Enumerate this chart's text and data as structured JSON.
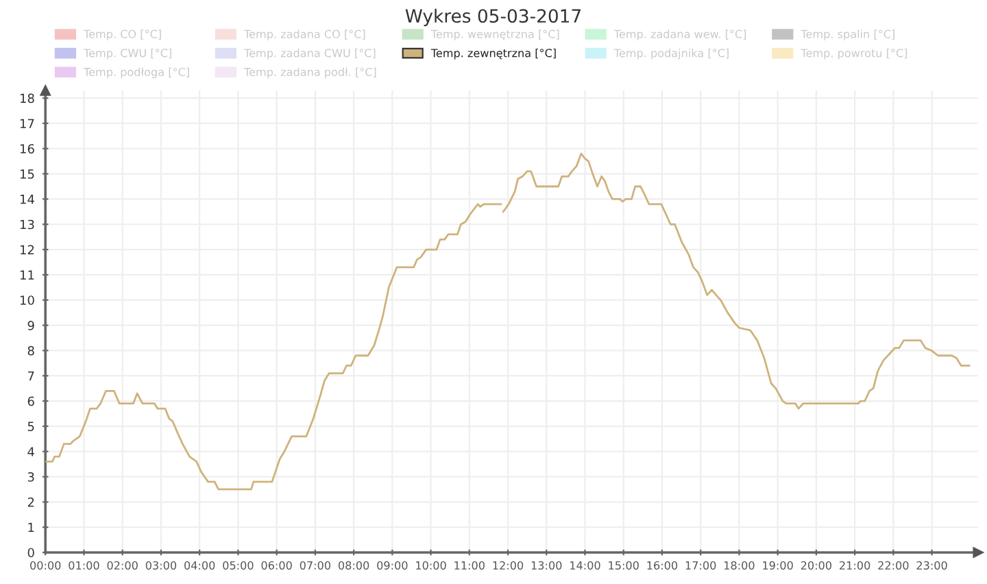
{
  "chart_data": {
    "type": "line",
    "title": "Wykres 05-03-2017",
    "x": [
      0.0,
      0.18,
      0.24,
      0.36,
      0.48,
      0.65,
      0.71,
      0.89,
      1.05,
      1.16,
      1.33,
      1.43,
      1.57,
      1.78,
      1.92,
      2.28,
      2.38,
      2.52,
      2.83,
      2.91,
      3.11,
      3.21,
      3.3,
      3.44,
      3.56,
      3.74,
      3.92,
      4.04,
      4.22,
      4.39,
      4.49,
      5.34,
      5.4,
      5.88,
      6.08,
      6.2,
      6.39,
      6.77,
      6.95,
      7.13,
      7.24,
      7.36,
      7.72,
      7.81,
      7.93,
      8.05,
      8.37,
      8.53,
      8.67,
      8.76,
      8.91,
      9.12,
      9.56,
      9.64,
      9.74,
      9.88,
      10.15,
      10.24,
      10.36,
      10.45,
      10.69,
      10.78,
      10.9,
      11.02,
      11.22,
      11.28,
      11.38,
      11.82,
      11.85,
      11.88,
      12.02,
      12.18,
      12.26,
      12.38,
      12.5,
      12.6,
      12.74,
      13.31,
      13.4,
      13.57,
      13.66,
      13.78,
      13.9,
      14.0,
      14.09,
      14.2,
      14.32,
      14.43,
      14.52,
      14.61,
      14.71,
      14.91,
      14.97,
      15.06,
      15.21,
      15.3,
      15.44,
      15.54,
      15.66,
      15.98,
      16.1,
      16.22,
      16.33,
      16.51,
      16.69,
      16.81,
      16.93,
      17.05,
      17.17,
      17.29,
      17.4,
      17.52,
      17.7,
      17.88,
      18.0,
      18.29,
      18.47,
      18.65,
      18.83,
      18.95,
      19.13,
      19.22,
      19.46,
      19.54,
      19.66,
      19.84,
      21.09,
      21.15,
      21.26,
      21.38,
      21.48,
      21.6,
      21.74,
      21.92,
      22.04,
      22.15,
      22.27,
      22.71,
      22.83,
      22.99,
      23.16,
      23.52,
      23.64,
      23.76,
      23.97
    ],
    "series": [
      {
        "name": "Temp. CO [°C]",
        "color": "#f5c2c2",
        "values": [
          null,
          null,
          null,
          null,
          null,
          null,
          null,
          null,
          null,
          null,
          null,
          null,
          null,
          null,
          null,
          null,
          null,
          null,
          null,
          null,
          null,
          null,
          null,
          null,
          null,
          null,
          null,
          null,
          null,
          null,
          null,
          null,
          null,
          null,
          null,
          null,
          null,
          null,
          null,
          null,
          null,
          null,
          null,
          null,
          null,
          null,
          null,
          null,
          null,
          null,
          null,
          null,
          null,
          null,
          null,
          null,
          null,
          null,
          null,
          null,
          null,
          null,
          null,
          null,
          null,
          null,
          null,
          null,
          null,
          null,
          null,
          null,
          null,
          null,
          null,
          null,
          null,
          null,
          null,
          null,
          null,
          null,
          null,
          null,
          null,
          null,
          null,
          null,
          null,
          null,
          null,
          null,
          null,
          null,
          null,
          null,
          null,
          null,
          null,
          null,
          null,
          null,
          null,
          null,
          null,
          null,
          null,
          null,
          null,
          null,
          null,
          null,
          null,
          null,
          null,
          null,
          null,
          null,
          null,
          null,
          null,
          null,
          null,
          null,
          null,
          null,
          null,
          null,
          null,
          null,
          null,
          null,
          null,
          null,
          null,
          null,
          null,
          null,
          null,
          null,
          null,
          null,
          null,
          null,
          null
        ]
      },
      {
        "name": "Temp. zadana CO [°C]",
        "color": "#f9dede",
        "values": [
          null,
          null,
          null,
          null,
          null,
          null,
          null,
          null,
          null,
          null,
          null,
          null,
          null,
          null,
          null,
          null,
          null,
          null,
          null,
          null,
          null,
          null,
          null,
          null,
          null,
          null,
          null,
          null,
          null,
          null,
          null,
          null,
          null,
          null,
          null,
          null,
          null,
          null,
          null,
          null,
          null,
          null,
          null,
          null,
          null,
          null,
          null,
          null,
          null,
          null,
          null,
          null,
          null,
          null,
          null,
          null,
          null,
          null,
          null,
          null,
          null,
          null,
          null,
          null,
          null,
          null,
          null,
          null,
          null,
          null,
          null,
          null,
          null,
          null,
          null,
          null,
          null,
          null,
          null,
          null,
          null,
          null,
          null,
          null,
          null,
          null,
          null,
          null,
          null,
          null,
          null,
          null,
          null,
          null,
          null,
          null,
          null,
          null,
          null,
          null,
          null,
          null,
          null,
          null,
          null,
          null,
          null,
          null,
          null,
          null,
          null,
          null,
          null,
          null,
          null,
          null,
          null,
          null,
          null,
          null,
          null,
          null,
          null,
          null,
          null,
          null,
          null,
          null,
          null,
          null,
          null,
          null,
          null,
          null,
          null,
          null,
          null,
          null,
          null,
          null,
          null,
          null,
          null,
          null,
          null
        ]
      },
      {
        "name": "Temp. wewnętrzna [°C]",
        "color": "#c6e4c6",
        "values": [
          null,
          null,
          null,
          null,
          null,
          null,
          null,
          null,
          null,
          null,
          null,
          null,
          null,
          null,
          null,
          null,
          null,
          null,
          null,
          null,
          null,
          null,
          null,
          null,
          null,
          null,
          null,
          null,
          null,
          null,
          null,
          null,
          null,
          null,
          null,
          null,
          null,
          null,
          null,
          null,
          null,
          null,
          null,
          null,
          null,
          null,
          null,
          null,
          null,
          null,
          null,
          null,
          null,
          null,
          null,
          null,
          null,
          null,
          null,
          null,
          null,
          null,
          null,
          null,
          null,
          null,
          null,
          null,
          null,
          null,
          null,
          null,
          null,
          null,
          null,
          null,
          null,
          null,
          null,
          null,
          null,
          null,
          null,
          null,
          null,
          null,
          null,
          null,
          null,
          null,
          null,
          null,
          null,
          null,
          null,
          null,
          null,
          null,
          null,
          null,
          null,
          null,
          null,
          null,
          null,
          null,
          null,
          null,
          null,
          null,
          null,
          null,
          null,
          null,
          null,
          null,
          null,
          null,
          null,
          null,
          null,
          null,
          null,
          null,
          null,
          null,
          null,
          null,
          null,
          null,
          null,
          null,
          null,
          null,
          null,
          null,
          null,
          null,
          null,
          null,
          null,
          null,
          null,
          null,
          null
        ]
      },
      {
        "name": "Temp. zadana wew. [°C]",
        "color": "#c9f5d9",
        "values": [
          null,
          null,
          null,
          null,
          null,
          null,
          null,
          null,
          null,
          null,
          null,
          null,
          null,
          null,
          null,
          null,
          null,
          null,
          null,
          null,
          null,
          null,
          null,
          null,
          null,
          null,
          null,
          null,
          null,
          null,
          null,
          null,
          null,
          null,
          null,
          null,
          null,
          null,
          null,
          null,
          null,
          null,
          null,
          null,
          null,
          null,
          null,
          null,
          null,
          null,
          null,
          null,
          null,
          null,
          null,
          null,
          null,
          null,
          null,
          null,
          null,
          null,
          null,
          null,
          null,
          null,
          null,
          null,
          null,
          null,
          null,
          null,
          null,
          null,
          null,
          null,
          null,
          null,
          null,
          null,
          null,
          null,
          null,
          null,
          null,
          null,
          null,
          null,
          null,
          null,
          null,
          null,
          null,
          null,
          null,
          null,
          null,
          null,
          null,
          null,
          null,
          null,
          null,
          null,
          null,
          null,
          null,
          null,
          null,
          null,
          null,
          null,
          null,
          null,
          null,
          null,
          null,
          null,
          null,
          null,
          null,
          null,
          null,
          null,
          null,
          null,
          null,
          null,
          null,
          null,
          null,
          null,
          null,
          null,
          null,
          null,
          null,
          null,
          null,
          null,
          null,
          null,
          null,
          null,
          null
        ]
      },
      {
        "name": "Temp. spalin [°C]",
        "color": "#c2c2c2",
        "values": [
          null,
          null,
          null,
          null,
          null,
          null,
          null,
          null,
          null,
          null,
          null,
          null,
          null,
          null,
          null,
          null,
          null,
          null,
          null,
          null,
          null,
          null,
          null,
          null,
          null,
          null,
          null,
          null,
          null,
          null,
          null,
          null,
          null,
          null,
          null,
          null,
          null,
          null,
          null,
          null,
          null,
          null,
          null,
          null,
          null,
          null,
          null,
          null,
          null,
          null,
          null,
          null,
          null,
          null,
          null,
          null,
          null,
          null,
          null,
          null,
          null,
          null,
          null,
          null,
          null,
          null,
          null,
          null,
          null,
          null,
          null,
          null,
          null,
          null,
          null,
          null,
          null,
          null,
          null,
          null,
          null,
          null,
          null,
          null,
          null,
          null,
          null,
          null,
          null,
          null,
          null,
          null,
          null,
          null,
          null,
          null,
          null,
          null,
          null,
          null,
          null,
          null,
          null,
          null,
          null,
          null,
          null,
          null,
          null,
          null,
          null,
          null,
          null,
          null,
          null,
          null,
          null,
          null,
          null,
          null,
          null,
          null,
          null,
          null,
          null,
          null,
          null,
          null,
          null,
          null,
          null,
          null,
          null,
          null,
          null,
          null,
          null,
          null,
          null,
          null,
          null,
          null,
          null,
          null,
          null
        ]
      },
      {
        "name": "Temp. CWU [°C]",
        "color": "#c2c2ee",
        "values": [
          null,
          null,
          null,
          null,
          null,
          null,
          null,
          null,
          null,
          null,
          null,
          null,
          null,
          null,
          null,
          null,
          null,
          null,
          null,
          null,
          null,
          null,
          null,
          null,
          null,
          null,
          null,
          null,
          null,
          null,
          null,
          null,
          null,
          null,
          null,
          null,
          null,
          null,
          null,
          null,
          null,
          null,
          null,
          null,
          null,
          null,
          null,
          null,
          null,
          null,
          null,
          null,
          null,
          null,
          null,
          null,
          null,
          null,
          null,
          null,
          null,
          null,
          null,
          null,
          null,
          null,
          null,
          null,
          null,
          null,
          null,
          null,
          null,
          null,
          null,
          null,
          null,
          null,
          null,
          null,
          null,
          null,
          null,
          null,
          null,
          null,
          null,
          null,
          null,
          null,
          null,
          null,
          null,
          null,
          null,
          null,
          null,
          null,
          null,
          null,
          null,
          null,
          null,
          null,
          null,
          null,
          null,
          null,
          null,
          null,
          null,
          null,
          null,
          null,
          null,
          null,
          null,
          null,
          null,
          null,
          null,
          null,
          null,
          null,
          null,
          null,
          null,
          null,
          null,
          null,
          null,
          null,
          null,
          null,
          null,
          null,
          null,
          null,
          null,
          null,
          null,
          null,
          null,
          null,
          null
        ]
      },
      {
        "name": "Temp. zadana CWU [°C]",
        "color": "#dedef6",
        "values": [
          null,
          null,
          null,
          null,
          null,
          null,
          null,
          null,
          null,
          null,
          null,
          null,
          null,
          null,
          null,
          null,
          null,
          null,
          null,
          null,
          null,
          null,
          null,
          null,
          null,
          null,
          null,
          null,
          null,
          null,
          null,
          null,
          null,
          null,
          null,
          null,
          null,
          null,
          null,
          null,
          null,
          null,
          null,
          null,
          null,
          null,
          null,
          null,
          null,
          null,
          null,
          null,
          null,
          null,
          null,
          null,
          null,
          null,
          null,
          null,
          null,
          null,
          null,
          null,
          null,
          null,
          null,
          null,
          null,
          null,
          null,
          null,
          null,
          null,
          null,
          null,
          null,
          null,
          null,
          null,
          null,
          null,
          null,
          null,
          null,
          null,
          null,
          null,
          null,
          null,
          null,
          null,
          null,
          null,
          null,
          null,
          null,
          null,
          null,
          null,
          null,
          null,
          null,
          null,
          null,
          null,
          null,
          null,
          null,
          null,
          null,
          null,
          null,
          null,
          null,
          null,
          null,
          null,
          null,
          null,
          null,
          null,
          null,
          null,
          null,
          null,
          null,
          null,
          null,
          null,
          null,
          null,
          null,
          null,
          null,
          null,
          null,
          null,
          null,
          null,
          null,
          null,
          null,
          null,
          null
        ]
      },
      {
        "name": "Temp. zewnętrzna [°C]",
        "color": "#cfb27c",
        "values": [
          3.6,
          3.6,
          3.8,
          3.8,
          4.3,
          4.3,
          4.4,
          4.6,
          5.2,
          5.7,
          5.7,
          5.9,
          6.4,
          6.4,
          5.9,
          5.9,
          6.3,
          5.9,
          5.9,
          5.7,
          5.7,
          5.3,
          5.2,
          4.7,
          4.3,
          3.8,
          3.6,
          3.2,
          2.8,
          2.8,
          2.5,
          2.5,
          2.8,
          2.8,
          3.7,
          4.0,
          4.6,
          4.6,
          5.3,
          6.2,
          6.8,
          7.1,
          7.1,
          7.4,
          7.4,
          7.8,
          7.8,
          8.2,
          8.9,
          9.4,
          10.5,
          11.3,
          11.3,
          11.6,
          11.7,
          12.0,
          12.0,
          12.4,
          12.4,
          12.6,
          12.6,
          13.0,
          13.1,
          13.4,
          13.8,
          13.7,
          13.8,
          13.8,
          null,
          13.5,
          13.8,
          14.3,
          14.8,
          14.9,
          15.1,
          15.1,
          14.5,
          14.5,
          14.9,
          14.9,
          15.1,
          15.3,
          15.8,
          15.6,
          15.5,
          15.0,
          14.5,
          14.9,
          14.7,
          14.3,
          14.0,
          14.0,
          13.9,
          14.0,
          14.0,
          14.5,
          14.5,
          14.2,
          13.8,
          13.8,
          13.4,
          13.0,
          13.0,
          12.3,
          11.8,
          11.3,
          11.1,
          10.7,
          10.2,
          10.4,
          10.2,
          10.0,
          9.5,
          9.1,
          8.9,
          8.8,
          8.4,
          7.7,
          6.7,
          6.5,
          6.0,
          5.9,
          5.9,
          5.7,
          5.9,
          5.9,
          5.9,
          6.0,
          6.0,
          6.4,
          6.5,
          7.2,
          7.6,
          7.9,
          8.1,
          8.1,
          8.4,
          8.4,
          8.1,
          8.0,
          7.8,
          7.8,
          7.7,
          7.4,
          7.4
        ]
      },
      {
        "name": "Temp. podajnika [°C]",
        "color": "#c9f3f8",
        "values": [
          null,
          null,
          null,
          null,
          null,
          null,
          null,
          null,
          null,
          null,
          null,
          null,
          null,
          null,
          null,
          null,
          null,
          null,
          null,
          null,
          null,
          null,
          null,
          null,
          null,
          null,
          null,
          null,
          null,
          null,
          null,
          null,
          null,
          null,
          null,
          null,
          null,
          null,
          null,
          null,
          null,
          null,
          null,
          null,
          null,
          null,
          null,
          null,
          null,
          null,
          null,
          null,
          null,
          null,
          null,
          null,
          null,
          null,
          null,
          null,
          null,
          null,
          null,
          null,
          null,
          null,
          null,
          null,
          null,
          null,
          null,
          null,
          null,
          null,
          null,
          null,
          null,
          null,
          null,
          null,
          null,
          null,
          null,
          null,
          null,
          null,
          null,
          null,
          null,
          null,
          null,
          null,
          null,
          null,
          null,
          null,
          null,
          null,
          null,
          null,
          null,
          null,
          null,
          null,
          null,
          null,
          null,
          null,
          null,
          null,
          null,
          null,
          null,
          null,
          null,
          null,
          null,
          null,
          null,
          null,
          null,
          null,
          null,
          null,
          null,
          null,
          null,
          null,
          null,
          null,
          null,
          null,
          null,
          null,
          null,
          null,
          null,
          null,
          null,
          null,
          null,
          null,
          null,
          null,
          null
        ]
      },
      {
        "name": "Temp. powrotu [°C]",
        "color": "#faeac2",
        "values": [
          null,
          null,
          null,
          null,
          null,
          null,
          null,
          null,
          null,
          null,
          null,
          null,
          null,
          null,
          null,
          null,
          null,
          null,
          null,
          null,
          null,
          null,
          null,
          null,
          null,
          null,
          null,
          null,
          null,
          null,
          null,
          null,
          null,
          null,
          null,
          null,
          null,
          null,
          null,
          null,
          null,
          null,
          null,
          null,
          null,
          null,
          null,
          null,
          null,
          null,
          null,
          null,
          null,
          null,
          null,
          null,
          null,
          null,
          null,
          null,
          null,
          null,
          null,
          null,
          null,
          null,
          null,
          null,
          null,
          null,
          null,
          null,
          null,
          null,
          null,
          null,
          null,
          null,
          null,
          null,
          null,
          null,
          null,
          null,
          null,
          null,
          null,
          null,
          null,
          null,
          null,
          null,
          null,
          null,
          null,
          null,
          null,
          null,
          null,
          null,
          null,
          null,
          null,
          null,
          null,
          null,
          null,
          null,
          null,
          null,
          null,
          null,
          null,
          null,
          null,
          null,
          null,
          null,
          null,
          null,
          null,
          null,
          null,
          null,
          null,
          null,
          null,
          null,
          null,
          null,
          null,
          null,
          null,
          null,
          null,
          null,
          null,
          null,
          null,
          null,
          null,
          null,
          null,
          null,
          null
        ]
      },
      {
        "name": "Temp. podłoga [°C]",
        "color": "#e9c9f1",
        "values": [
          null,
          null,
          null,
          null,
          null,
          null,
          null,
          null,
          null,
          null,
          null,
          null,
          null,
          null,
          null,
          null,
          null,
          null,
          null,
          null,
          null,
          null,
          null,
          null,
          null,
          null,
          null,
          null,
          null,
          null,
          null,
          null,
          null,
          null,
          null,
          null,
          null,
          null,
          null,
          null,
          null,
          null,
          null,
          null,
          null,
          null,
          null,
          null,
          null,
          null,
          null,
          null,
          null,
          null,
          null,
          null,
          null,
          null,
          null,
          null,
          null,
          null,
          null,
          null,
          null,
          null,
          null,
          null,
          null,
          null,
          null,
          null,
          null,
          null,
          null,
          null,
          null,
          null,
          null,
          null,
          null,
          null,
          null,
          null,
          null,
          null,
          null,
          null,
          null,
          null,
          null,
          null,
          null,
          null,
          null,
          null,
          null,
          null,
          null,
          null,
          null,
          null,
          null,
          null,
          null,
          null,
          null,
          null,
          null,
          null,
          null,
          null,
          null,
          null,
          null,
          null,
          null,
          null,
          null,
          null,
          null,
          null,
          null,
          null,
          null,
          null,
          null,
          null,
          null,
          null,
          null,
          null,
          null,
          null,
          null,
          null,
          null,
          null,
          null,
          null,
          null,
          null,
          null,
          null,
          null
        ]
      },
      {
        "name": "Temp. zadana podł. [°C]",
        "color": "#f3e6f5",
        "values": [
          null,
          null,
          null,
          null,
          null,
          null,
          null,
          null,
          null,
          null,
          null,
          null,
          null,
          null,
          null,
          null,
          null,
          null,
          null,
          null,
          null,
          null,
          null,
          null,
          null,
          null,
          null,
          null,
          null,
          null,
          null,
          null,
          null,
          null,
          null,
          null,
          null,
          null,
          null,
          null,
          null,
          null,
          null,
          null,
          null,
          null,
          null,
          null,
          null,
          null,
          null,
          null,
          null,
          null,
          null,
          null,
          null,
          null,
          null,
          null,
          null,
          null,
          null,
          null,
          null,
          null,
          null,
          null,
          null,
          null,
          null,
          null,
          null,
          null,
          null,
          null,
          null,
          null,
          null,
          null,
          null,
          null,
          null,
          null,
          null,
          null,
          null,
          null,
          null,
          null,
          null,
          null,
          null,
          null,
          null,
          null,
          null,
          null,
          null,
          null,
          null,
          null,
          null,
          null,
          null,
          null,
          null,
          null,
          null,
          null,
          null,
          null,
          null,
          null,
          null,
          null,
          null,
          null,
          null,
          null,
          null,
          null,
          null,
          null,
          null,
          null,
          null,
          null,
          null,
          null,
          null,
          null,
          null,
          null,
          null,
          null,
          null,
          null,
          null,
          null,
          null,
          null,
          null,
          null,
          null
        ]
      }
    ],
    "xlim": [
      0,
      24.2
    ],
    "xticks": [
      {
        "value": 0,
        "label": "00:00"
      },
      {
        "value": 1,
        "label": "01:00"
      },
      {
        "value": 2,
        "label": "02:00"
      },
      {
        "value": 3,
        "label": "03:00"
      },
      {
        "value": 4,
        "label": "04:00"
      },
      {
        "value": 5,
        "label": "05:00"
      },
      {
        "value": 6,
        "label": "06:00"
      },
      {
        "value": 7,
        "label": "07:00"
      },
      {
        "value": 8,
        "label": "08:00"
      },
      {
        "value": 9,
        "label": "09:00"
      },
      {
        "value": 10,
        "label": "10:00"
      },
      {
        "value": 11,
        "label": "11:00"
      },
      {
        "value": 12,
        "label": "12:00"
      },
      {
        "value": 13,
        "label": "13:00"
      },
      {
        "value": 14,
        "label": "14:00"
      },
      {
        "value": 15,
        "label": "15:00"
      },
      {
        "value": 16,
        "label": "16:00"
      },
      {
        "value": 17,
        "label": "17:00"
      },
      {
        "value": 18,
        "label": "18:00"
      },
      {
        "value": 19,
        "label": "19:00"
      },
      {
        "value": 20,
        "label": "20:00"
      },
      {
        "value": 21,
        "label": "21:00"
      },
      {
        "value": 22,
        "label": "22:00"
      },
      {
        "value": 23,
        "label": "23:00"
      }
    ],
    "ylim": [
      0,
      18.3
    ],
    "yticks": [
      0,
      1,
      2,
      3,
      4,
      5,
      6,
      7,
      8,
      9,
      10,
      11,
      12,
      13,
      14,
      15,
      16,
      17,
      18
    ],
    "grid": true,
    "legend": "top"
  }
}
